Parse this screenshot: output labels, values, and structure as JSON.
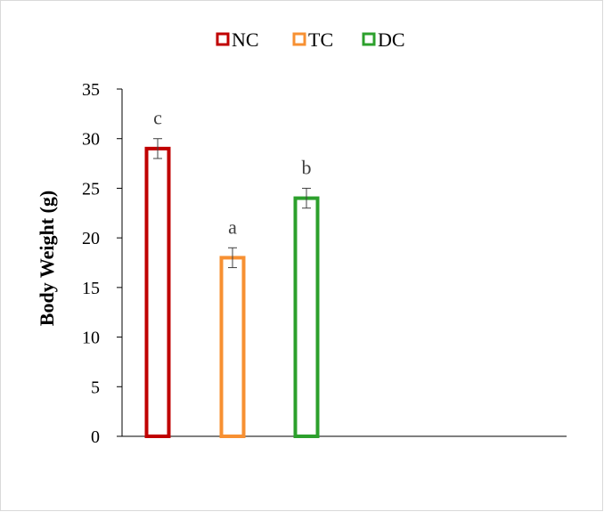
{
  "chart_data": {
    "type": "bar",
    "categories": [
      "NC",
      "TC",
      "DC"
    ],
    "values": [
      29,
      18,
      24
    ],
    "errors": [
      1,
      1,
      1
    ],
    "significance_letters": [
      "c",
      "a",
      "b"
    ],
    "series_colors": [
      "#c00000",
      "#f79032",
      "#2ca02c"
    ],
    "title": "",
    "xlabel": "",
    "ylabel": "Body Weight (g)",
    "ylim": [
      0,
      35
    ],
    "yticks": [
      0,
      5,
      10,
      15,
      20,
      25,
      30,
      35
    ],
    "legend": {
      "placement": "top-center",
      "entries": [
        "NC",
        "TC",
        "DC"
      ]
    },
    "grid": false,
    "bar_style": "outline"
  }
}
